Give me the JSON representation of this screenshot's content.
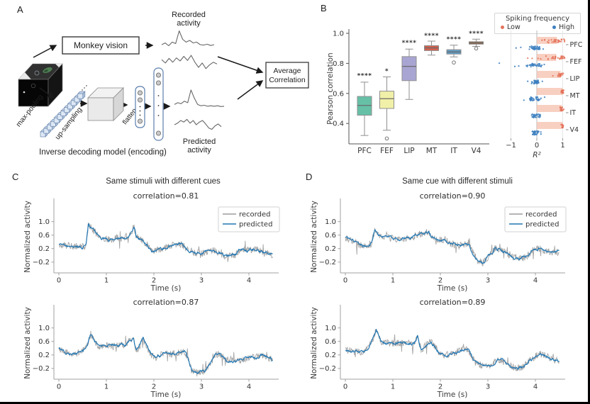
{
  "page": {
    "background": "#ffffff",
    "frame_color": "#000000"
  },
  "panel_a": {
    "label": "A",
    "monkey_vision": "Monkey vision",
    "recorded_activity_line1": "Recorded",
    "recorded_activity_line2": "activity",
    "predicted_activity_line1": "Predicted",
    "predicted_activity_line2": "activity",
    "average_correlation_line1": "Average",
    "average_correlation_line2": "Correlation",
    "max_pooling": "max-pooling",
    "up_sampling": "up-sampling",
    "flatten": "flatten",
    "caption": "Inverse decoding model (encoding)",
    "mini_traces": {
      "recorded1": [
        0.3,
        0.38,
        0.25,
        0.42,
        0.35,
        0.95,
        0.55,
        0.42,
        0.5,
        0.38,
        0.42,
        0.3,
        0.28,
        0.32,
        0.26,
        0.3
      ],
      "recorded2": [
        0.55,
        0.42,
        0.6,
        0.45,
        0.62,
        0.5,
        0.68,
        0.52,
        0.72,
        0.45,
        0.25,
        0.42,
        0.2,
        0.35,
        0.45,
        0.38
      ],
      "predicted1": [
        0.35,
        0.42,
        0.38,
        0.48,
        0.42,
        0.92,
        0.6,
        0.35,
        0.3,
        0.32,
        0.28,
        0.3,
        0.28,
        0.3,
        0.27,
        0.28
      ],
      "predicted2": [
        0.42,
        0.48,
        0.58,
        0.52,
        0.62,
        0.48,
        0.58,
        0.42,
        0.52,
        0.58,
        0.45,
        0.3,
        0.25,
        0.38,
        0.45,
        0.35
      ]
    }
  },
  "panel_b": {
    "label": "B",
    "legend": {
      "title": "Spiking frequency",
      "items": [
        {
          "label": "Low",
          "color": "#e4735a"
        },
        {
          "label": "High",
          "color": "#3c7fc0"
        }
      ]
    }
  },
  "panel_c": {
    "label": "C",
    "title": "Same stimuli with different cues"
  },
  "panel_d": {
    "label": "D",
    "title": "Same cue with different stimuli"
  },
  "ts_legend": {
    "recorded": "recorded",
    "predicted": "predicted"
  },
  "ts_axes": {
    "ylabel": "Normalized activity",
    "xlabel": "Time (s)",
    "yticks": [
      1.0,
      0.6,
      0.2,
      -0.2
    ],
    "xticks": [
      0,
      1,
      2,
      3,
      4
    ],
    "ylim": [
      -0.52,
      1.56
    ],
    "xlim": [
      0,
      4.5
    ],
    "colors": {
      "recorded": "#9b9b9b",
      "predicted": "#2077b4"
    }
  },
  "chart_data": [
    {
      "id": "pearson-boxplot",
      "type": "box",
      "ylabel": "Pearson correlation",
      "categories": [
        "PFC",
        "FEF",
        "LIP",
        "MT",
        "IT",
        "V4"
      ],
      "yticks": [
        0.4,
        0.6,
        0.8,
        1.0
      ],
      "ylim": [
        0.265,
        1.03
      ],
      "colors": [
        "#66c0a6",
        "#f1f0a8",
        "#a9a5d3",
        "#d6604d",
        "#5e9fc9",
        "#9a5b30"
      ],
      "boxes": [
        {
          "label": "PFC",
          "whislo": 0.32,
          "q1": 0.455,
          "med": 0.52,
          "q3": 0.58,
          "whishi": 0.675,
          "outliers": [],
          "sig": "****",
          "sig_y": 0.705
        },
        {
          "label": "FEF",
          "whislo": 0.355,
          "q1": 0.5,
          "med": 0.565,
          "q3": 0.615,
          "whishi": 0.71,
          "outliers": [
            0.3
          ],
          "sig": "*",
          "sig_y": 0.735
        },
        {
          "label": "LIP",
          "whislo": 0.56,
          "q1": 0.685,
          "med": 0.78,
          "q3": 0.845,
          "whishi": 0.895,
          "outliers": [],
          "sig": "****",
          "sig_y": 0.925
        },
        {
          "label": "MT",
          "whislo": 0.855,
          "q1": 0.885,
          "med": 0.903,
          "q3": 0.918,
          "whishi": 0.948,
          "outliers": [],
          "sig": "****",
          "sig_y": 0.972
        },
        {
          "label": "IT",
          "whislo": 0.843,
          "q1": 0.862,
          "med": 0.876,
          "q3": 0.891,
          "whishi": 0.921,
          "outliers": [
            0.806
          ],
          "sig": "****",
          "sig_y": 0.948
        },
        {
          "label": "V4",
          "whislo": 0.913,
          "q1": 0.928,
          "med": 0.936,
          "q3": 0.944,
          "whishi": 0.961,
          "outliers": [
            0.899
          ],
          "sig": "****",
          "sig_y": 0.985
        }
      ]
    },
    {
      "id": "r2-dotplot",
      "type": "scatter",
      "xlabel": "R²",
      "xticks": [
        -1,
        0,
        1
      ],
      "xlim": [
        -1.6,
        1.15
      ],
      "categories": [
        "PFC",
        "FEF",
        "LIP",
        "MT",
        "IT",
        "V4"
      ],
      "bar_color": "#f5c0ae",
      "dot_colors": {
        "low": "#e4735a",
        "high": "#3c7fc0"
      },
      "rows": [
        {
          "label": "PFC",
          "bar": 0.78,
          "low": {
            "mean": 0.82,
            "sd": 0.18,
            "n": 28
          },
          "low_extra": [
            0.2,
            0.3,
            0.42
          ],
          "high": {
            "mean": -0.07,
            "sd": 0.14,
            "n": 34
          },
          "high_extra": [
            -0.62,
            -0.8
          ]
        },
        {
          "label": "FEF",
          "bar": 0.75,
          "low": {
            "mean": 0.78,
            "sd": 0.2,
            "n": 26
          },
          "low_extra": [
            -0.35,
            -0.18,
            0.05,
            0.15
          ],
          "high": {
            "mean": -0.08,
            "sd": 0.16,
            "n": 34
          },
          "high_extra": [
            -1.45,
            -0.85,
            -0.7
          ]
        },
        {
          "label": "LIP",
          "bar": 0.92,
          "low": {
            "mean": 0.92,
            "sd": 0.05,
            "n": 20
          },
          "low_extra": [
            0.62
          ],
          "high": {
            "mean": -0.03,
            "sd": 0.09,
            "n": 30
          },
          "high_extra": [
            -0.35
          ]
        },
        {
          "label": "MT",
          "bar": 1.0,
          "low": {
            "mean": 0.99,
            "sd": 0.025,
            "n": 16
          },
          "low_extra": [],
          "high": {
            "mean": -0.06,
            "sd": 0.15,
            "n": 32
          },
          "high_extra": [
            0.3,
            -0.5
          ]
        },
        {
          "label": "IT",
          "bar": 0.97,
          "low": {
            "mean": 0.96,
            "sd": 0.035,
            "n": 16
          },
          "low_extra": [],
          "high": {
            "mean": -0.03,
            "sd": 0.08,
            "n": 28
          },
          "high_extra": []
        },
        {
          "label": "V4",
          "bar": 1.0,
          "low": {
            "mean": 0.99,
            "sd": 0.025,
            "n": 16
          },
          "low_extra": [],
          "high": {
            "mean": -0.04,
            "sd": 0.1,
            "n": 30
          },
          "high_extra": []
        }
      ]
    },
    {
      "id": "c1",
      "type": "line",
      "title": "correlation=0.81",
      "correlation": 0.81,
      "seed": 11,
      "recorded_noise": 0.1,
      "predicted_noise": 0.03,
      "waypoints": [
        [
          0,
          0.32
        ],
        [
          0.1,
          0.3
        ],
        [
          0.3,
          0.27
        ],
        [
          0.5,
          0.25
        ],
        [
          0.57,
          0.3
        ],
        [
          0.62,
          0.92
        ],
        [
          0.7,
          0.8
        ],
        [
          0.8,
          0.62
        ],
        [
          0.95,
          0.5
        ],
        [
          1.1,
          0.45
        ],
        [
          1.25,
          0.55
        ],
        [
          1.35,
          0.5
        ],
        [
          1.45,
          0.55
        ],
        [
          1.52,
          0.68
        ],
        [
          1.58,
          0.85
        ],
        [
          1.63,
          0.55
        ],
        [
          1.75,
          0.45
        ],
        [
          1.85,
          0.35
        ],
        [
          1.95,
          0.12
        ],
        [
          2.1,
          0.18
        ],
        [
          2.25,
          0.22
        ],
        [
          2.4,
          0.3
        ],
        [
          2.55,
          0.35
        ],
        [
          2.7,
          0.2
        ],
        [
          2.85,
          0.08
        ],
        [
          3.0,
          0.05
        ],
        [
          3.1,
          0.1
        ],
        [
          3.25,
          0.15
        ],
        [
          3.4,
          0.05
        ],
        [
          3.55,
          -0.05
        ],
        [
          3.7,
          0.02
        ],
        [
          3.85,
          0.18
        ],
        [
          4.0,
          0.15
        ],
        [
          4.15,
          0.18
        ],
        [
          4.3,
          0.1
        ],
        [
          4.5,
          0.02
        ]
      ]
    },
    {
      "id": "c2",
      "type": "line",
      "title": "correlation=0.87",
      "correlation": 0.87,
      "seed": 22,
      "recorded_noise": 0.1,
      "predicted_noise": 0.03,
      "waypoints": [
        [
          0,
          0.4
        ],
        [
          0.15,
          0.3
        ],
        [
          0.3,
          0.22
        ],
        [
          0.5,
          0.3
        ],
        [
          0.6,
          0.55
        ],
        [
          0.67,
          0.82
        ],
        [
          0.75,
          0.6
        ],
        [
          0.85,
          0.45
        ],
        [
          1.0,
          0.48
        ],
        [
          1.2,
          0.46
        ],
        [
          1.4,
          0.5
        ],
        [
          1.5,
          0.65
        ],
        [
          1.57,
          0.7
        ],
        [
          1.63,
          0.3
        ],
        [
          1.7,
          0.45
        ],
        [
          1.77,
          0.68
        ],
        [
          1.85,
          0.45
        ],
        [
          1.95,
          0.2
        ],
        [
          2.05,
          0.1
        ],
        [
          2.2,
          0.25
        ],
        [
          2.35,
          0.22
        ],
        [
          2.5,
          0.26
        ],
        [
          2.65,
          0.3
        ],
        [
          2.72,
          0.05
        ],
        [
          2.8,
          -0.28
        ],
        [
          2.95,
          -0.3
        ],
        [
          3.05,
          -0.28
        ],
        [
          3.15,
          -0.15
        ],
        [
          3.3,
          0.2
        ],
        [
          3.4,
          0.22
        ],
        [
          3.55,
          0.05
        ],
        [
          3.7,
          0.02
        ],
        [
          3.85,
          0.05
        ],
        [
          4.0,
          0.1
        ],
        [
          4.15,
          0.15
        ],
        [
          4.3,
          0.2
        ],
        [
          4.5,
          0.05
        ]
      ]
    },
    {
      "id": "d1",
      "type": "line",
      "title": "correlation=0.90",
      "correlation": 0.9,
      "seed": 33,
      "recorded_noise": 0.1,
      "predicted_noise": 0.03,
      "waypoints": [
        [
          0,
          0.52
        ],
        [
          0.15,
          0.42
        ],
        [
          0.3,
          0.3
        ],
        [
          0.45,
          0.28
        ],
        [
          0.55,
          0.35
        ],
        [
          0.62,
          0.78
        ],
        [
          0.7,
          0.6
        ],
        [
          0.85,
          0.55
        ],
        [
          1.0,
          0.5
        ],
        [
          1.2,
          0.48
        ],
        [
          1.4,
          0.5
        ],
        [
          1.5,
          0.62
        ],
        [
          1.65,
          0.65
        ],
        [
          1.75,
          0.68
        ],
        [
          1.85,
          0.5
        ],
        [
          2.0,
          0.45
        ],
        [
          2.1,
          0.48
        ],
        [
          2.2,
          0.35
        ],
        [
          2.35,
          0.3
        ],
        [
          2.5,
          0.32
        ],
        [
          2.6,
          0.3
        ],
        [
          2.7,
          0.05
        ],
        [
          2.8,
          -0.18
        ],
        [
          2.9,
          -0.22
        ],
        [
          3.0,
          -0.05
        ],
        [
          3.15,
          0.2
        ],
        [
          3.25,
          0.18
        ],
        [
          3.4,
          0.05
        ],
        [
          3.5,
          -0.05
        ],
        [
          3.65,
          -0.1
        ],
        [
          3.8,
          -0.05
        ],
        [
          3.95,
          0.15
        ],
        [
          4.1,
          0.2
        ],
        [
          4.25,
          0.1
        ],
        [
          4.4,
          0.12
        ],
        [
          4.5,
          0.08
        ]
      ]
    },
    {
      "id": "d2",
      "type": "line",
      "title": "correlation=0.89",
      "correlation": 0.89,
      "seed": 44,
      "recorded_noise": 0.1,
      "predicted_noise": 0.03,
      "waypoints": [
        [
          0,
          0.35
        ],
        [
          0.2,
          0.3
        ],
        [
          0.4,
          0.28
        ],
        [
          0.5,
          0.45
        ],
        [
          0.6,
          0.75
        ],
        [
          0.65,
          0.95
        ],
        [
          0.75,
          0.6
        ],
        [
          0.85,
          0.55
        ],
        [
          1.0,
          0.55
        ],
        [
          1.2,
          0.55
        ],
        [
          1.35,
          0.52
        ],
        [
          1.45,
          0.55
        ],
        [
          1.52,
          0.75
        ],
        [
          1.6,
          0.35
        ],
        [
          1.7,
          0.5
        ],
        [
          1.8,
          0.6
        ],
        [
          1.9,
          0.4
        ],
        [
          2.0,
          0.22
        ],
        [
          2.15,
          0.2
        ],
        [
          2.3,
          0.25
        ],
        [
          2.45,
          0.35
        ],
        [
          2.55,
          0.4
        ],
        [
          2.65,
          0.2
        ],
        [
          2.75,
          -0.05
        ],
        [
          2.9,
          -0.12
        ],
        [
          3.0,
          -0.15
        ],
        [
          3.1,
          -0.08
        ],
        [
          3.2,
          0.08
        ],
        [
          3.3,
          0.02
        ],
        [
          3.45,
          -0.12
        ],
        [
          3.6,
          -0.18
        ],
        [
          3.75,
          -0.15
        ],
        [
          3.85,
          0.0
        ],
        [
          4.0,
          0.15
        ],
        [
          4.1,
          0.25
        ],
        [
          4.25,
          0.15
        ],
        [
          4.4,
          0.05
        ],
        [
          4.5,
          0.02
        ]
      ]
    }
  ]
}
